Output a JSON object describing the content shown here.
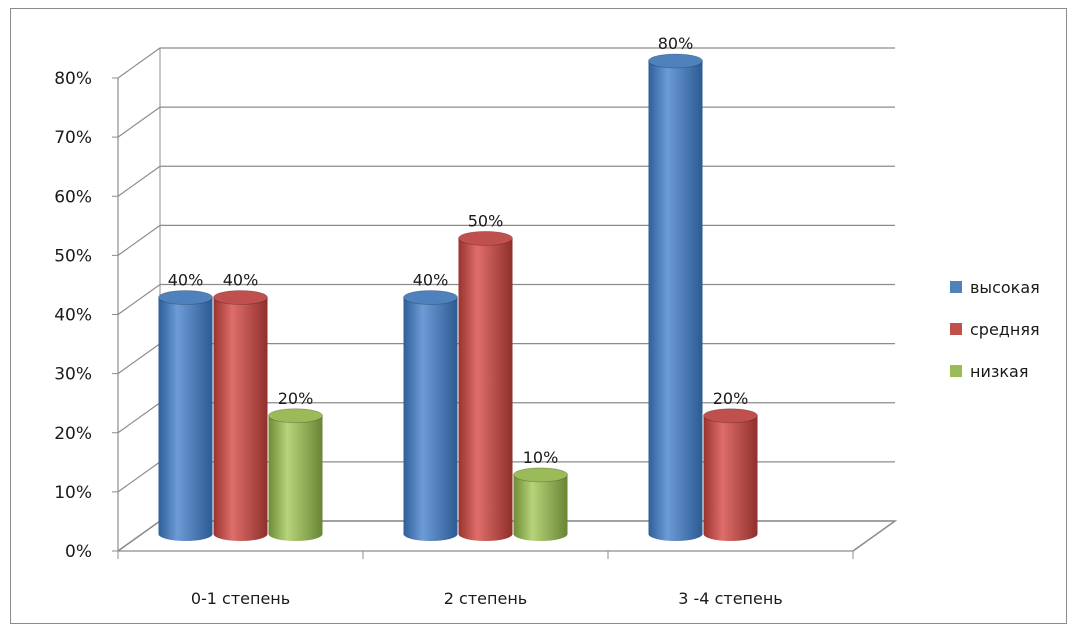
{
  "chart_data": {
    "type": "bar",
    "categories": [
      "0-1 степень",
      "2 степень",
      "3 -4 степень"
    ],
    "series": [
      {
        "name": "высокая",
        "values": [
          40,
          40,
          80
        ],
        "color": "#4F81BD"
      },
      {
        "name": "средняя",
        "values": [
          40,
          50,
          20
        ],
        "color": "#C0504D"
      },
      {
        "name": "низкая",
        "values": [
          20,
          10,
          null
        ],
        "color": "#9BBB59"
      }
    ],
    "ylim": [
      0,
      80
    ],
    "ytick_step": 10,
    "tick_suffix": "%",
    "data_labels": true,
    "grid": true,
    "legend_position": "right",
    "style": "3d-cylinder"
  }
}
